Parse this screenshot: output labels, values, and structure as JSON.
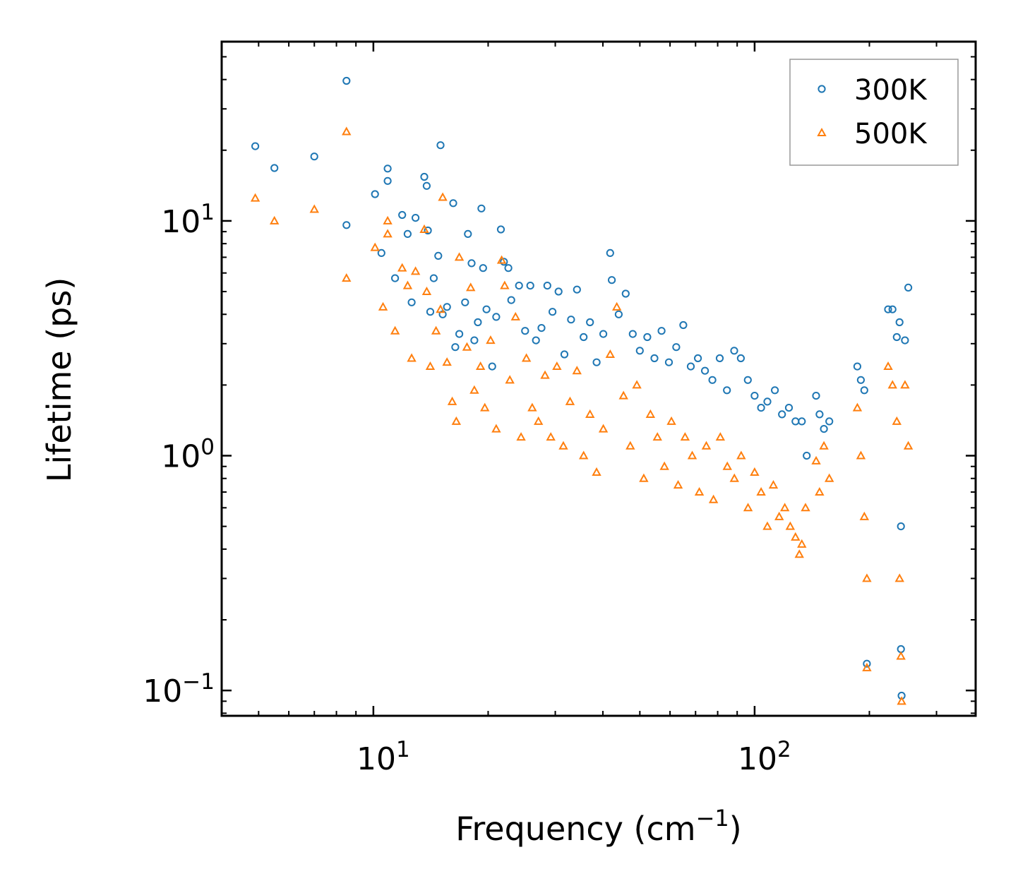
{
  "chart_data": {
    "type": "scatter",
    "title": "",
    "xlabel": "Frequency (cm",
    "xlabel_sup": "−1",
    "xlabel_tail": ")",
    "ylabel": "Lifetime (ps)",
    "xscale": "log",
    "yscale": "log",
    "xlim": [
      4.0,
      380.0
    ],
    "ylim": [
      0.078,
      58.0
    ],
    "x_ticks": [
      {
        "value": 10,
        "base": "10",
        "exp": "1"
      },
      {
        "value": 100,
        "base": "10",
        "exp": "2"
      }
    ],
    "y_ticks": [
      {
        "value": 0.1,
        "base": "10",
        "exp": "−1"
      },
      {
        "value": 1,
        "base": "10",
        "exp": "0"
      },
      {
        "value": 10,
        "base": "10",
        "exp": "1"
      }
    ],
    "legend": {
      "position": "top-right"
    },
    "series": [
      {
        "name": "300K",
        "marker": "circle",
        "color": "#1f77b4",
        "points": [
          [
            4.9,
            20.8
          ],
          [
            5.5,
            16.8
          ],
          [
            7.0,
            18.8
          ],
          [
            8.5,
            39.5
          ],
          [
            8.5,
            9.6
          ],
          [
            10.1,
            13.0
          ],
          [
            10.5,
            7.3
          ],
          [
            10.9,
            16.7
          ],
          [
            10.9,
            14.8
          ],
          [
            11.4,
            5.7
          ],
          [
            11.9,
            10.6
          ],
          [
            12.3,
            8.8
          ],
          [
            12.6,
            4.5
          ],
          [
            12.9,
            10.3
          ],
          [
            13.6,
            15.4
          ],
          [
            13.8,
            14.1
          ],
          [
            13.9,
            9.1
          ],
          [
            14.1,
            4.1
          ],
          [
            14.4,
            5.7
          ],
          [
            14.8,
            7.1
          ],
          [
            15.0,
            21.0
          ],
          [
            15.2,
            4.0
          ],
          [
            15.6,
            4.3
          ],
          [
            16.2,
            11.9
          ],
          [
            16.4,
            2.9
          ],
          [
            16.8,
            3.3
          ],
          [
            17.4,
            4.5
          ],
          [
            17.7,
            8.8
          ],
          [
            18.1,
            6.6
          ],
          [
            18.4,
            3.1
          ],
          [
            18.8,
            3.7
          ],
          [
            19.2,
            11.3
          ],
          [
            19.4,
            6.3
          ],
          [
            19.8,
            4.2
          ],
          [
            20.5,
            2.4
          ],
          [
            21.0,
            3.9
          ],
          [
            21.6,
            9.2
          ],
          [
            22.0,
            6.7
          ],
          [
            22.6,
            6.3
          ],
          [
            23.0,
            4.6
          ],
          [
            24.1,
            5.3
          ],
          [
            25.0,
            3.4
          ],
          [
            25.8,
            5.3
          ],
          [
            26.7,
            3.1
          ],
          [
            27.6,
            3.5
          ],
          [
            28.6,
            5.3
          ],
          [
            29.5,
            4.1
          ],
          [
            30.6,
            5.0
          ],
          [
            31.7,
            2.7
          ],
          [
            33.0,
            3.8
          ],
          [
            34.2,
            5.1
          ],
          [
            35.6,
            3.2
          ],
          [
            37.0,
            3.7
          ],
          [
            38.5,
            2.5
          ],
          [
            40.1,
            3.3
          ],
          [
            41.8,
            7.3
          ],
          [
            42.2,
            5.6
          ],
          [
            44.0,
            4.0
          ],
          [
            45.9,
            4.9
          ],
          [
            47.9,
            3.3
          ],
          [
            50.0,
            2.8
          ],
          [
            52.3,
            3.2
          ],
          [
            54.6,
            2.6
          ],
          [
            57.0,
            3.4
          ],
          [
            59.6,
            2.5
          ],
          [
            62.3,
            2.9
          ],
          [
            65.0,
            3.6
          ],
          [
            68.0,
            2.4
          ],
          [
            71.0,
            2.6
          ],
          [
            74.1,
            2.3
          ],
          [
            77.5,
            2.1
          ],
          [
            81.0,
            2.6
          ],
          [
            84.6,
            1.9
          ],
          [
            88.4,
            2.8
          ],
          [
            92.0,
            2.6
          ],
          [
            96.0,
            2.1
          ],
          [
            100.0,
            1.8
          ],
          [
            104.0,
            1.6
          ],
          [
            108.0,
            1.7
          ],
          [
            113.0,
            1.9
          ],
          [
            118.0,
            1.5
          ],
          [
            123.0,
            1.6
          ],
          [
            128.0,
            1.4
          ],
          [
            133.0,
            1.4
          ],
          [
            137.0,
            1.0
          ],
          [
            145.0,
            1.8
          ],
          [
            148.0,
            1.5
          ],
          [
            152.0,
            1.3
          ],
          [
            157.0,
            1.4
          ],
          [
            186.0,
            2.4
          ],
          [
            190.0,
            2.1
          ],
          [
            194.0,
            1.9
          ],
          [
            197.0,
            0.13
          ],
          [
            224.0,
            4.2
          ],
          [
            230.0,
            4.2
          ],
          [
            236.0,
            3.2
          ],
          [
            240.0,
            3.7
          ],
          [
            242.0,
            0.5
          ],
          [
            242.0,
            0.15
          ],
          [
            243.0,
            0.095
          ],
          [
            248.0,
            3.1
          ],
          [
            253.0,
            5.2
          ]
        ]
      },
      {
        "name": "500K",
        "marker": "triangle",
        "color": "#ff7f0e",
        "points": [
          [
            4.9,
            12.5
          ],
          [
            5.5,
            10.0
          ],
          [
            7.0,
            11.2
          ],
          [
            8.5,
            24.0
          ],
          [
            8.5,
            5.7
          ],
          [
            10.1,
            7.7
          ],
          [
            10.6,
            4.3
          ],
          [
            10.9,
            10.0
          ],
          [
            10.9,
            8.8
          ],
          [
            11.4,
            3.4
          ],
          [
            11.9,
            6.3
          ],
          [
            12.3,
            5.3
          ],
          [
            12.6,
            2.6
          ],
          [
            12.9,
            6.1
          ],
          [
            13.6,
            9.2
          ],
          [
            13.8,
            5.0
          ],
          [
            14.1,
            2.4
          ],
          [
            14.6,
            3.4
          ],
          [
            15.0,
            4.2
          ],
          [
            15.2,
            12.6
          ],
          [
            15.6,
            2.5
          ],
          [
            16.1,
            1.7
          ],
          [
            16.5,
            1.4
          ],
          [
            16.8,
            7.0
          ],
          [
            17.6,
            2.9
          ],
          [
            18.0,
            5.2
          ],
          [
            18.4,
            1.9
          ],
          [
            19.1,
            2.4
          ],
          [
            19.6,
            1.6
          ],
          [
            20.3,
            3.1
          ],
          [
            21.0,
            1.3
          ],
          [
            21.7,
            6.8
          ],
          [
            22.1,
            5.3
          ],
          [
            22.8,
            2.1
          ],
          [
            23.6,
            3.9
          ],
          [
            24.4,
            1.2
          ],
          [
            25.2,
            2.6
          ],
          [
            26.1,
            1.6
          ],
          [
            27.1,
            1.4
          ],
          [
            28.2,
            2.2
          ],
          [
            29.2,
            1.2
          ],
          [
            30.3,
            2.4
          ],
          [
            31.5,
            1.1
          ],
          [
            32.8,
            1.7
          ],
          [
            34.2,
            2.3
          ],
          [
            35.6,
            1.0
          ],
          [
            37.0,
            1.5
          ],
          [
            38.5,
            0.85
          ],
          [
            40.1,
            1.3
          ],
          [
            41.8,
            2.7
          ],
          [
            43.5,
            4.3
          ],
          [
            45.3,
            1.8
          ],
          [
            47.2,
            1.1
          ],
          [
            49.1,
            2.0
          ],
          [
            51.2,
            0.8
          ],
          [
            53.3,
            1.5
          ],
          [
            55.6,
            1.2
          ],
          [
            58.0,
            0.9
          ],
          [
            60.5,
            1.4
          ],
          [
            63.0,
            0.75
          ],
          [
            65.7,
            1.2
          ],
          [
            68.6,
            1.0
          ],
          [
            71.6,
            0.7
          ],
          [
            74.7,
            1.1
          ],
          [
            78.0,
            0.65
          ],
          [
            81.3,
            1.2
          ],
          [
            84.8,
            0.9
          ],
          [
            88.5,
            0.8
          ],
          [
            92.2,
            1.0
          ],
          [
            96.1,
            0.6
          ],
          [
            100.0,
            0.85
          ],
          [
            104.0,
            0.7
          ],
          [
            108.0,
            0.5
          ],
          [
            112.0,
            0.75
          ],
          [
            116.0,
            0.55
          ],
          [
            120.0,
            0.6
          ],
          [
            124.0,
            0.5
          ],
          [
            128.0,
            0.45
          ],
          [
            131.0,
            0.38
          ],
          [
            133.0,
            0.42
          ],
          [
            136.0,
            0.6
          ],
          [
            145.0,
            0.95
          ],
          [
            148.0,
            0.7
          ],
          [
            152.0,
            1.1
          ],
          [
            157.0,
            0.8
          ],
          [
            186.0,
            1.6
          ],
          [
            190.0,
            1.0
          ],
          [
            194.0,
            0.55
          ],
          [
            197.0,
            0.125
          ],
          [
            197.0,
            0.3
          ],
          [
            224.0,
            2.4
          ],
          [
            230.0,
            2.0
          ],
          [
            236.0,
            1.4
          ],
          [
            240.0,
            0.3
          ],
          [
            242.0,
            0.14
          ],
          [
            243.0,
            0.09
          ],
          [
            248.0,
            2.0
          ],
          [
            253.0,
            1.1
          ]
        ]
      }
    ]
  }
}
